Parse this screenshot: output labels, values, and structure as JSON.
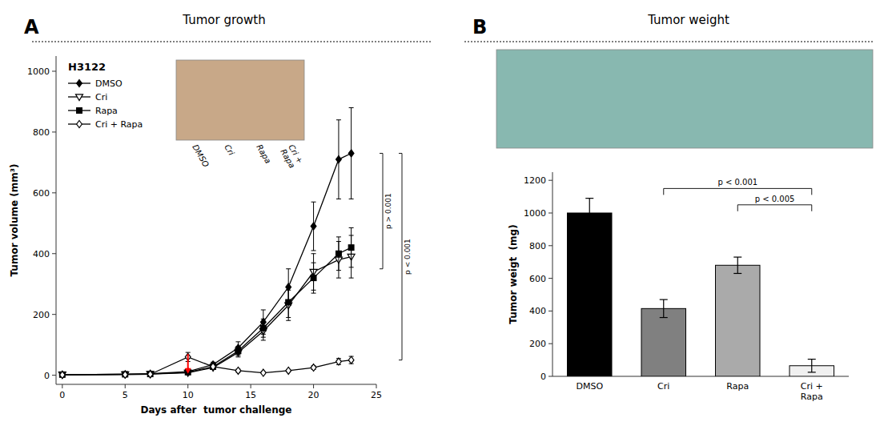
{
  "chart_data": [
    {
      "type": "line",
      "panel_label": "A",
      "title": "Tumor growth",
      "cell_line": "H3122",
      "x_label": "Days after  tumor challenge",
      "y_label": "Tumor volume (mm³)",
      "x": [
        0,
        5,
        7,
        10,
        12,
        14,
        16,
        18,
        20,
        22,
        23
      ],
      "xlim": [
        -0.5,
        25
      ],
      "xticks": [
        0,
        5,
        10,
        15,
        20,
        25
      ],
      "ylim": [
        -30,
        1050
      ],
      "yticks": [
        0,
        200,
        400,
        600,
        800,
        1000
      ],
      "legend": "upper left",
      "grid": false,
      "series": [
        {
          "name": "DMSO",
          "color": "black",
          "marker": "diamond",
          "line_style": "solid",
          "values": [
            2,
            3,
            5,
            12,
            35,
            90,
            175,
            290,
            490,
            710,
            730
          ],
          "errors": [
            1,
            1,
            2,
            3,
            8,
            20,
            40,
            60,
            80,
            130,
            150
          ]
        },
        {
          "name": "Cri",
          "color": "black",
          "marker": "triangle-down-open",
          "line_style": "solid",
          "values": [
            2,
            3,
            4,
            8,
            25,
            75,
            145,
            230,
            340,
            380,
            390
          ],
          "errors": [
            1,
            1,
            2,
            2,
            6,
            15,
            30,
            50,
            60,
            60,
            70
          ]
        },
        {
          "name": "Rapa",
          "color": "black",
          "marker": "square",
          "line_style": "solid",
          "values": [
            2,
            3,
            4,
            10,
            28,
            80,
            155,
            240,
            320,
            400,
            420
          ],
          "errors": [
            1,
            1,
            2,
            3,
            6,
            15,
            30,
            50,
            50,
            55,
            65
          ]
        },
        {
          "name": "Cri + Rapa",
          "color": "black",
          "marker": "diamond-open",
          "line_style": "solid",
          "values": [
            1,
            2,
            3,
            60,
            28,
            15,
            8,
            15,
            25,
            45,
            50
          ],
          "errors": [
            0,
            1,
            2,
            15,
            8,
            5,
            3,
            4,
            6,
            10,
            12
          ]
        }
      ],
      "arrow": {
        "x": 10,
        "y_from": 70,
        "y_to": 5,
        "color": "red"
      },
      "brackets": [
        {
          "label": "p > 0.001",
          "low": 350,
          "high": 730
        },
        {
          "label": "p < 0.001",
          "low": 50,
          "high": 730
        }
      ],
      "image_color": "#c8a888",
      "group_labels": [
        "DMSO",
        "Cri",
        "Rapa",
        "Cri +\nRapa"
      ]
    },
    {
      "type": "bar",
      "panel_label": "B",
      "title": "Tumor weight",
      "y_label": "Tumor weigt  (mg)",
      "categories": [
        "DMSO",
        "Cri",
        "Rapa",
        "Cri +\nRapa"
      ],
      "values": [
        1000,
        415,
        680,
        65
      ],
      "errors": [
        90,
        55,
        50,
        40
      ],
      "colors": [
        "#000000",
        "#808080",
        "#aaaaaa",
        "#f0f0f0"
      ],
      "edge_colors": [
        "#000000",
        "#000000",
        "#000000",
        "#000000"
      ],
      "ylim": [
        0,
        1250
      ],
      "yticks": [
        0,
        200,
        400,
        600,
        800,
        1000,
        1200
      ],
      "grid": false,
      "brackets": [
        {
          "label": "p < 0.001",
          "from": "Cri",
          "to": "Cri +\nRapa",
          "y": 1150
        },
        {
          "label": "p < 0.005",
          "from": "Rapa",
          "to": "Cri +\nRapa",
          "y": 1050
        }
      ],
      "image_color": "#88b8b0"
    }
  ]
}
